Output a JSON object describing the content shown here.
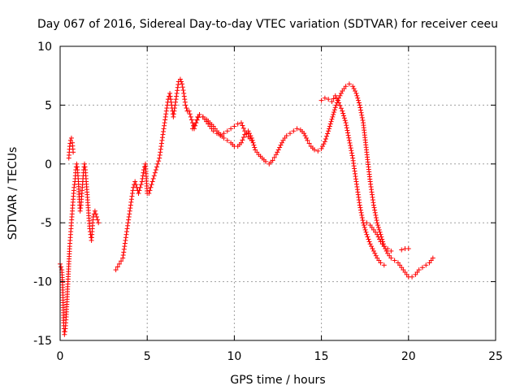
{
  "chart_data": {
    "type": "scatter",
    "title": "Day 067 of 2016, Sidereal Day-to-day VTEC variation (SDTVAR) for receiver ceeu",
    "xlabel": "GPS time / hours",
    "ylabel": "SDTVAR / TECUs",
    "xlim": [
      0,
      25
    ],
    "ylim": [
      -15,
      10
    ],
    "xticks": [
      "0",
      "5",
      "10",
      "15",
      "20",
      "25"
    ],
    "yticks": [
      "-15",
      "-10",
      "-5",
      "0",
      "5",
      "10"
    ],
    "grid": true,
    "marker": "plus",
    "color": "#ff0000",
    "series": [
      {
        "name": "SDTVAR",
        "x": [
          0.0,
          0.1,
          0.15,
          0.2,
          0.25,
          0.3,
          0.35,
          0.4,
          0.45,
          0.5,
          0.55,
          0.6,
          0.65,
          0.7,
          0.75,
          0.8,
          0.85,
          0.9,
          0.95,
          1.0,
          1.05,
          1.1,
          1.15,
          1.2,
          1.25,
          1.3,
          1.35,
          1.4,
          1.45,
          1.5,
          1.6,
          1.7,
          1.8,
          1.85,
          1.9,
          2.0,
          2.1,
          2.2,
          3.2,
          3.4,
          3.6,
          3.7,
          3.8,
          3.9,
          4.0,
          4.1,
          4.2,
          4.3,
          4.4,
          4.5,
          4.6,
          4.7,
          4.8,
          4.9,
          5.0,
          5.1,
          5.2,
          5.3,
          5.4,
          5.5,
          5.6,
          5.7,
          5.8,
          5.9,
          6.0,
          6.1,
          6.2,
          6.3,
          6.4,
          6.5,
          6.6,
          6.7,
          6.8,
          6.9,
          7.0,
          7.1,
          7.2,
          7.3,
          7.4,
          7.5,
          7.6,
          7.7,
          7.8,
          7.9,
          8.0,
          8.2,
          8.4,
          8.6,
          8.8,
          9.0,
          9.2,
          9.4,
          9.6,
          9.8,
          10.0,
          10.2,
          10.4,
          10.6,
          10.8,
          11.0,
          11.2,
          11.4,
          11.6,
          11.8,
          12.0,
          12.2,
          12.4,
          12.6,
          12.8,
          13.0,
          13.2,
          13.4,
          13.6,
          13.8,
          14.0,
          14.2,
          14.4,
          14.6,
          14.8,
          15.0,
          15.2,
          15.4,
          15.6,
          15.8,
          16.0,
          16.2,
          16.4,
          16.6,
          16.8,
          17.0,
          17.2,
          17.4,
          17.6,
          17.8,
          18.0,
          18.2,
          18.4,
          18.6,
          18.8,
          19.0,
          19.2,
          19.4,
          19.6,
          19.8,
          20.0,
          20.2,
          20.4,
          20.6,
          20.8,
          21.0,
          21.2,
          21.4
        ],
        "y": [
          -8.5,
          -9.0,
          -10.5,
          -13.5,
          -14.5,
          -14.0,
          -13.0,
          -11.5,
          -10.0,
          -8.5,
          -7.0,
          -6.0,
          -5.0,
          -4.0,
          -3.0,
          -2.0,
          -1.5,
          -0.5,
          0.0,
          -0.5,
          -1.5,
          -3.0,
          -4.0,
          -3.5,
          -2.5,
          -1.5,
          -0.5,
          0.0,
          -0.5,
          -1.5,
          -3.5,
          -5.5,
          -6.5,
          -5.5,
          -4.5,
          -4.0,
          -4.5,
          -5.0,
          -9.0,
          -8.5,
          -8.0,
          -7.0,
          -6.0,
          -5.0,
          -4.0,
          -3.0,
          -2.0,
          -1.5,
          -2.0,
          -2.5,
          -2.0,
          -1.5,
          -0.5,
          0.0,
          -2.5,
          -2.5,
          -2.0,
          -1.5,
          -1.0,
          -0.5,
          0.0,
          0.5,
          1.5,
          2.5,
          3.5,
          4.5,
          5.5,
          6.0,
          5.0,
          4.0,
          5.0,
          6.0,
          7.0,
          7.2,
          6.8,
          6.0,
          5.0,
          4.5,
          4.5,
          4.0,
          3.5,
          3.0,
          3.5,
          4.0,
          4.2,
          4.0,
          3.8,
          3.5,
          3.2,
          2.8,
          2.5,
          2.2,
          2.0,
          1.8,
          1.5,
          1.5,
          1.8,
          2.5,
          2.8,
          2.2,
          1.2,
          0.8,
          0.5,
          0.2,
          0.0,
          0.3,
          0.8,
          1.4,
          2.0,
          2.4,
          2.6,
          2.8,
          3.0,
          2.9,
          2.6,
          2.0,
          1.5,
          1.2,
          1.1,
          1.3,
          1.9,
          2.8,
          3.8,
          4.8,
          5.6,
          6.2,
          6.6,
          6.8,
          6.6,
          6.0,
          5.0,
          3.5,
          1.0,
          -1.5,
          -3.5,
          -5.0,
          -6.0,
          -7.0,
          -7.6,
          -8.0,
          -8.2,
          -8.4,
          -8.8,
          -9.2,
          -9.6,
          -9.6,
          -9.4,
          -9.0,
          -8.8,
          -8.6,
          -8.4,
          -8.0
        ],
        "extra_segments": [
          {
            "x": [
              0.5,
              0.55,
              0.6,
              0.65,
              0.7,
              0.75
            ],
            "y": [
              0.5,
              1.5,
              2.0,
              2.2,
              1.8,
              1.0
            ]
          },
          {
            "x": [
              7.6,
              7.8,
              8.0,
              8.2,
              8.4,
              8.6,
              8.8,
              9.0,
              9.2,
              9.4,
              9.6,
              9.8,
              10.0,
              10.2,
              10.4,
              10.6,
              10.8,
              11.0
            ],
            "y": [
              3.0,
              3.5,
              4.2,
              4.0,
              3.6,
              3.2,
              2.8,
              2.6,
              2.4,
              2.6,
              2.8,
              3.0,
              3.2,
              3.4,
              3.5,
              2.8,
              2.3,
              2.0
            ]
          },
          {
            "x": [
              15.0,
              15.2,
              15.4,
              15.6,
              15.8,
              16.0,
              16.2,
              16.4,
              16.6,
              16.8,
              17.0,
              17.2,
              17.4,
              17.6,
              17.8,
              18.0,
              18.2,
              18.4,
              18.6
            ],
            "y": [
              5.4,
              5.6,
              5.5,
              5.3,
              5.8,
              5.2,
              4.5,
              3.5,
              2.0,
              0.5,
              -1.5,
              -3.5,
              -5.0,
              -6.0,
              -6.8,
              -7.4,
              -8.0,
              -8.4,
              -8.6
            ]
          },
          {
            "x": [
              17.6,
              17.8,
              18.0,
              18.2,
              18.4,
              18.6,
              18.8,
              19.0
            ],
            "y": [
              -5.0,
              -5.2,
              -5.6,
              -6.0,
              -6.6,
              -7.0,
              -7.2,
              -7.4
            ]
          },
          {
            "x": [
              19.6,
              19.8,
              20.0
            ],
            "y": [
              -7.3,
              -7.2,
              -7.2
            ]
          }
        ]
      }
    ]
  }
}
